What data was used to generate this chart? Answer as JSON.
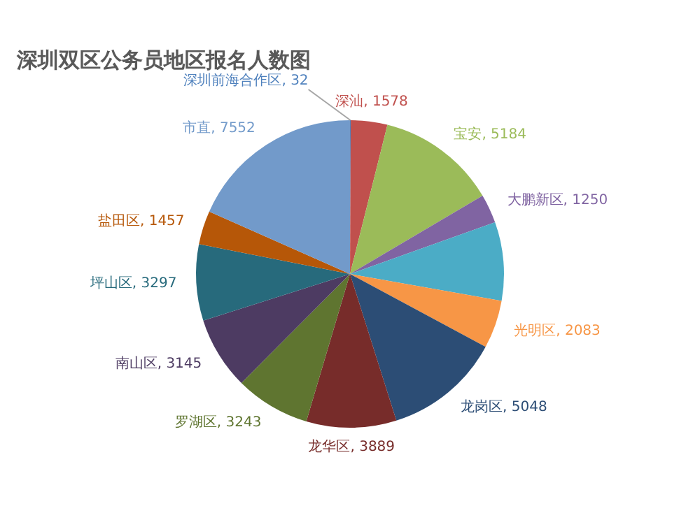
{
  "chart_data": {
    "type": "pie",
    "title": "深圳双区公务员地区报名人数图",
    "categories": [
      "深圳前海合作区",
      "深汕",
      "宝安",
      "大鹏新区",
      null,
      "光明区",
      "龙岗区",
      "龙华区",
      "罗湖区",
      "南山区",
      "坪山区",
      "盐田区",
      "市直"
    ],
    "values": [
      32,
      1578,
      5184,
      1250,
      3400,
      2083,
      5048,
      3889,
      3243,
      3145,
      3297,
      1457,
      7552
    ],
    "value_labels": [
      "32",
      "1578",
      "5184",
      "1250",
      null,
      "2083",
      "5048",
      "3889",
      "3243",
      "3145",
      "3297",
      "1457",
      "7552"
    ],
    "colors": [
      "#4f81bd",
      "#c0504d",
      "#9bbb59",
      "#8064a2",
      "#4bacc6",
      "#f79646",
      "#2c4d75",
      "#772c2a",
      "#5f7530",
      "#4d3b62",
      "#276a7c",
      "#b65708",
      "#729aca"
    ],
    "legend": false
  }
}
